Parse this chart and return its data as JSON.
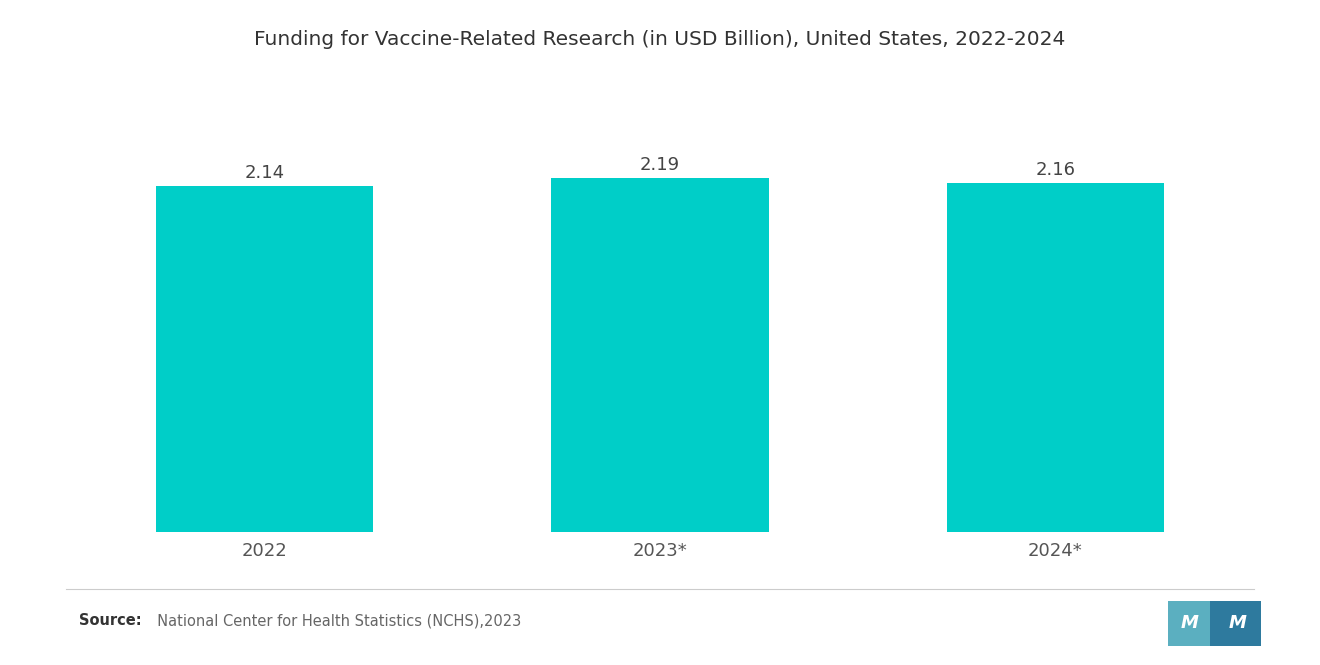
{
  "title": "Funding for Vaccine-Related Research (in USD Billion), United States, 2022-2024",
  "categories": [
    "2022",
    "2023*",
    "2024*"
  ],
  "values": [
    2.14,
    2.19,
    2.16
  ],
  "bar_color": "#00CEC8",
  "background_color": "#ffffff",
  "title_fontsize": 14.5,
  "label_fontsize": 13,
  "tick_fontsize": 13,
  "source_bold": "Source:",
  "source_rest": "  National Center for Health Statistics (NCHS),2023",
  "ylim": [
    0,
    2.55
  ],
  "bar_width": 0.55,
  "logo_color1": "#5BAFC0",
  "logo_color2": "#2E7A9E"
}
